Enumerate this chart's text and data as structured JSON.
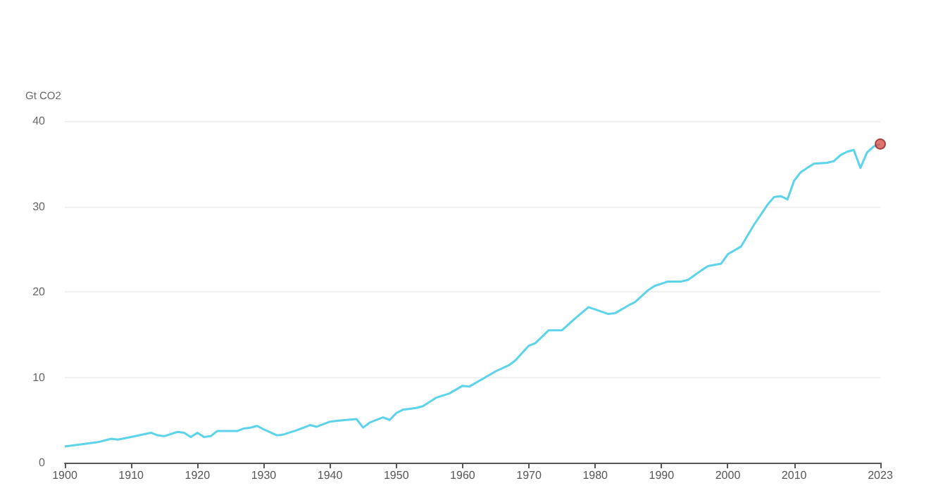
{
  "chart_data": {
    "type": "line",
    "ylabel": "Gt CO2",
    "x": [
      1900,
      1901,
      1903,
      1905,
      1907,
      1908,
      1910,
      1913,
      1914,
      1915,
      1917,
      1918,
      1919,
      1920,
      1921,
      1922,
      1923,
      1926,
      1927,
      1928,
      1929,
      1930,
      1932,
      1933,
      1935,
      1937,
      1938,
      1940,
      1941,
      1944,
      1945,
      1946,
      1948,
      1949,
      1950,
      1951,
      1953,
      1954,
      1956,
      1958,
      1960,
      1961,
      1963,
      1965,
      1967,
      1968,
      1970,
      1971,
      1973,
      1975,
      1977,
      1979,
      1982,
      1983,
      1985,
      1986,
      1988,
      1989,
      1991,
      1993,
      1994,
      1996,
      1997,
      1999,
      2000,
      2002,
      2004,
      2006,
      2007,
      2008,
      2009,
      2010,
      2011,
      2012,
      2013,
      2015,
      2016,
      2017,
      2018,
      2019,
      2020,
      2021,
      2022,
      2023
    ],
    "series": [
      {
        "color": "#5bd3ea",
        "marker": "none",
        "values": [
          1.9,
          2.0,
          2.2,
          2.4,
          2.8,
          2.7,
          3.0,
          3.5,
          3.2,
          3.1,
          3.6,
          3.5,
          3.0,
          3.5,
          3.0,
          3.1,
          3.7,
          3.7,
          4.0,
          4.1,
          4.3,
          3.9,
          3.2,
          3.3,
          3.8,
          4.4,
          4.2,
          4.8,
          4.9,
          5.1,
          4.1,
          4.7,
          5.3,
          5.0,
          5.8,
          6.2,
          6.4,
          6.6,
          7.6,
          8.1,
          9.0,
          8.9,
          9.8,
          10.7,
          11.4,
          12.0,
          13.7,
          14.0,
          15.5,
          15.5,
          16.9,
          18.2,
          17.4,
          17.5,
          18.4,
          18.8,
          20.2,
          20.7,
          21.2,
          21.2,
          21.4,
          22.5,
          23.0,
          23.3,
          24.4,
          25.3,
          27.9,
          30.2,
          31.1,
          31.2,
          30.8,
          33.0,
          34.0,
          34.5,
          35.0,
          35.1,
          35.3,
          36.0,
          36.4,
          36.6,
          34.5,
          36.3,
          37.0,
          37.3
        ]
      },
      {
        "type": "scatter",
        "color": "#d9534f",
        "marker": "circle",
        "x": [
          2023
        ],
        "values": [
          37.3
        ]
      }
    ],
    "xlim": [
      1900,
      2023
    ],
    "xticks": [
      1900,
      1910,
      1920,
      1930,
      1940,
      1950,
      1960,
      1970,
      1980,
      1990,
      2000,
      2010,
      2023
    ],
    "ylim": [
      0,
      40
    ],
    "yticks": [
      0,
      10,
      20,
      30,
      40
    ],
    "grid": "y"
  }
}
